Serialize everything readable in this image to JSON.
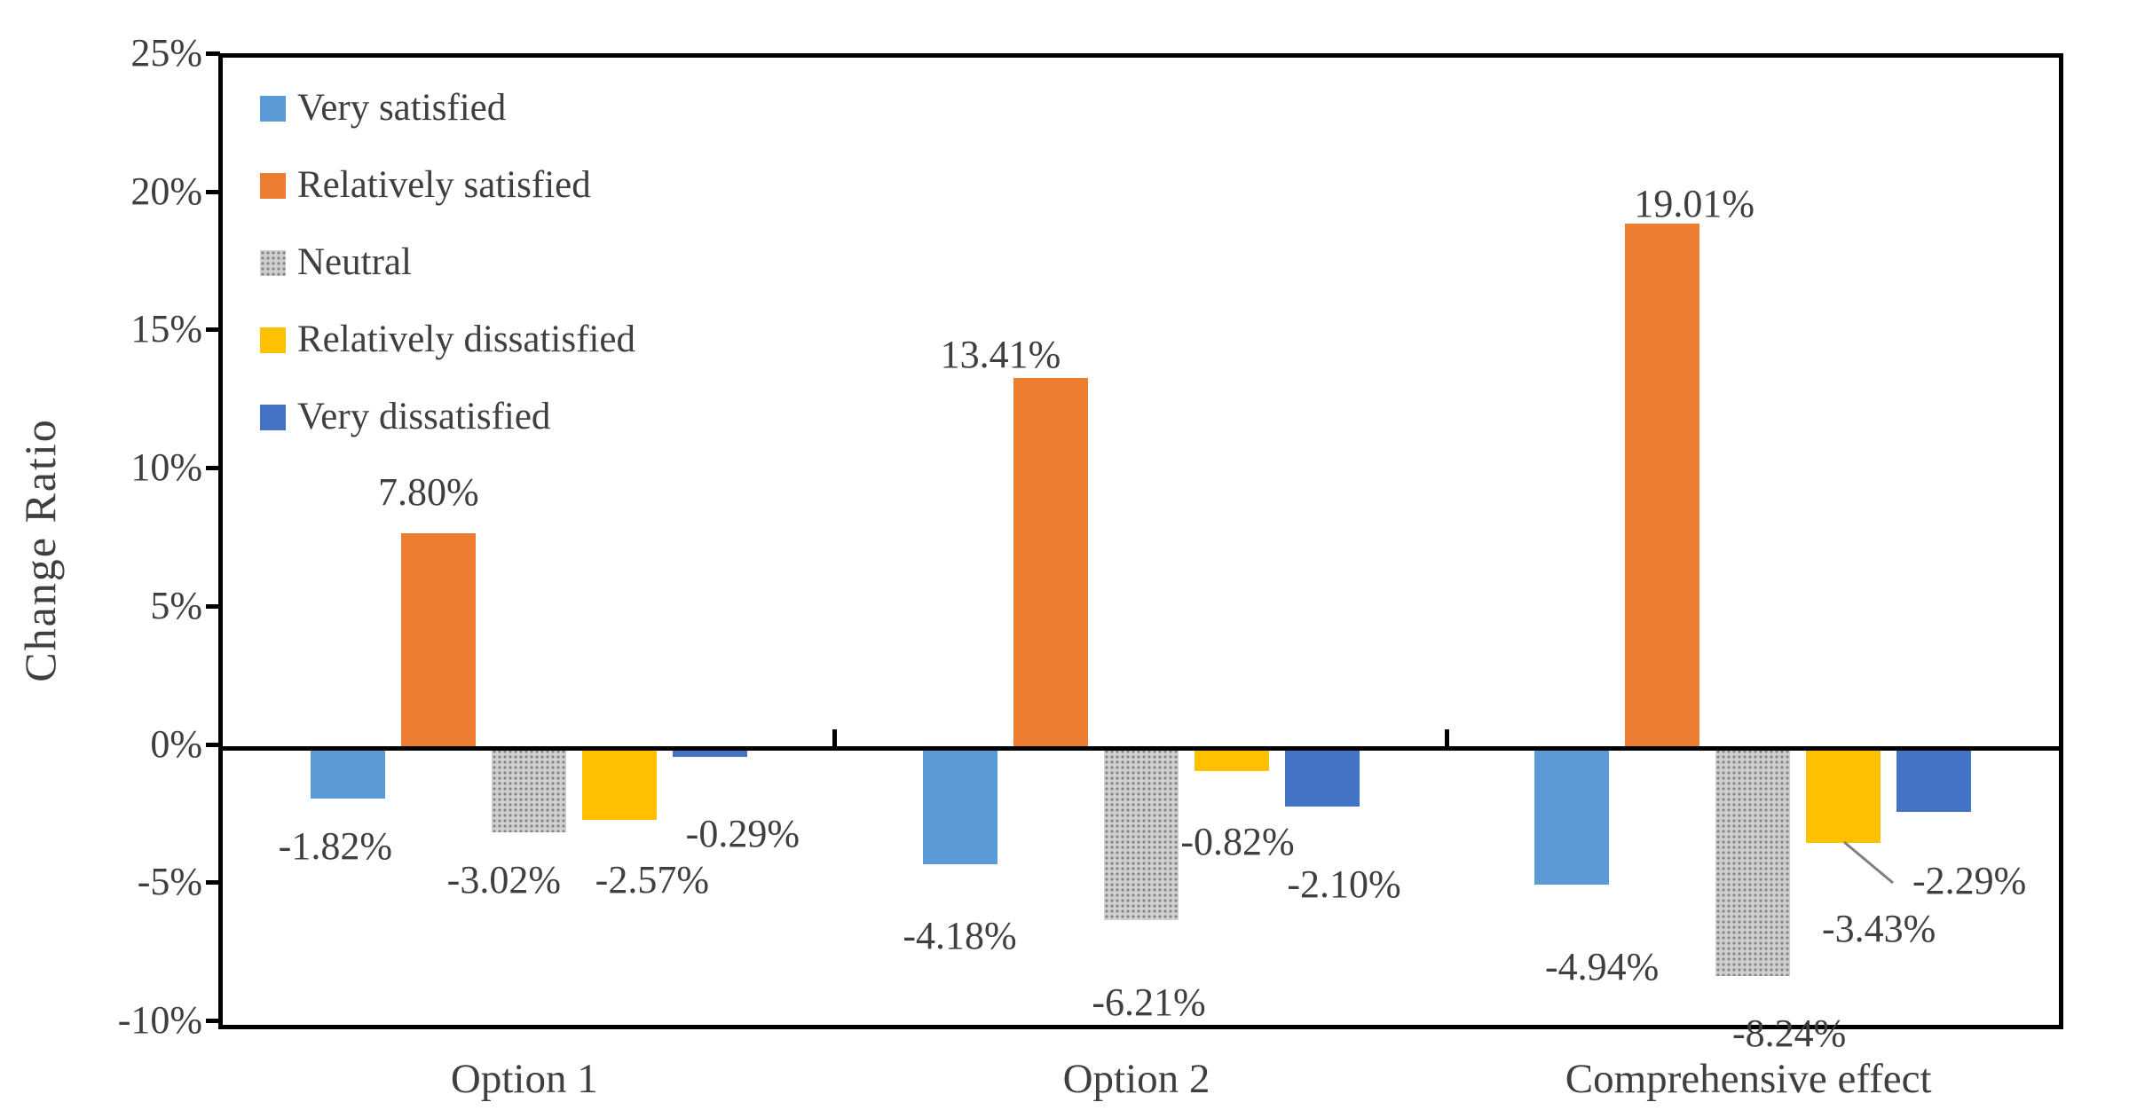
{
  "chart_data": {
    "type": "bar",
    "title": "",
    "xlabel": "",
    "ylabel": "Change Ratio",
    "categories": [
      "Option 1",
      "Option 2",
      "Comprehensive effect"
    ],
    "series": [
      {
        "name": "Very satisfied",
        "color": "#5B9BD5",
        "pattern": false,
        "values": [
          -1.82,
          -4.18,
          -4.94
        ]
      },
      {
        "name": "Relatively satisfied",
        "color": "#ED7D31",
        "pattern": false,
        "values": [
          7.8,
          13.41,
          19.01
        ]
      },
      {
        "name": "Neutral",
        "color": "#ACACAC",
        "pattern": true,
        "values": [
          -3.02,
          -6.21,
          -8.24
        ]
      },
      {
        "name": "Relatively dissatisfied",
        "color": "#FFC000",
        "pattern": false,
        "values": [
          -2.57,
          -0.82,
          -3.43
        ]
      },
      {
        "name": "Very dissatisfied",
        "color": "#4472C4",
        "pattern": false,
        "values": [
          -0.29,
          -2.1,
          -2.29
        ]
      }
    ],
    "data_labels": [
      [
        "-1.82%",
        "7.80%",
        "-3.02%",
        "-2.57%",
        "-0.29%"
      ],
      [
        "-4.18%",
        "13.41%",
        "-6.21%",
        "-0.82%",
        "-2.10%"
      ],
      [
        "-4.94%",
        "19.01%",
        "-8.24%",
        "-3.43%",
        "-2.29%"
      ]
    ],
    "yticks": [
      "25%",
      "20%",
      "15%",
      "10%",
      "5%",
      "0%",
      "-5%",
      "-10%"
    ],
    "ytick_values": [
      25,
      20,
      15,
      10,
      5,
      0,
      -5,
      -10
    ],
    "ylim": [
      -10,
      25
    ],
    "grid": false,
    "legend_position": "top-left-inside",
    "axis_color": "#000000",
    "text_color": "#3f3f3f",
    "annotations": [
      {
        "type": "leader-line",
        "category_index": 2,
        "series_name": "Very dissatisfied",
        "label": "-2.29%",
        "line_color": "#7f7f7f"
      }
    ]
  }
}
